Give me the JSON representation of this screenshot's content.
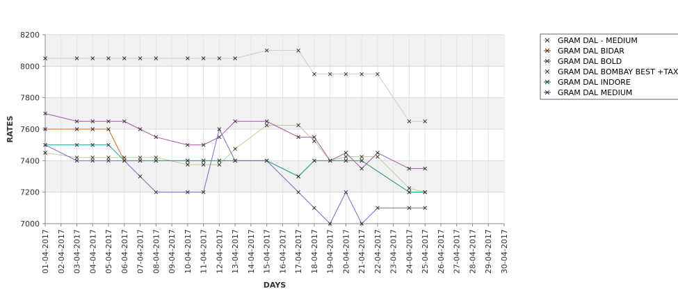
{
  "chart_data": {
    "type": "line",
    "xlabel": "DAYS",
    "ylabel": "RATES",
    "ylim": [
      7000,
      8200
    ],
    "yticks": [
      7000,
      7200,
      7400,
      7600,
      7800,
      8000,
      8200
    ],
    "grid": true,
    "legend_position": "right",
    "categories": [
      "01-04-2017",
      "02-04-2017",
      "03-04-2017",
      "04-04-2017",
      "05-04-2017",
      "06-04-2017",
      "07-04-2017",
      "08-04-2017",
      "09-04-2017",
      "10-04-2017",
      "11-04-2017",
      "12-04-2017",
      "13-04-2017",
      "14-04-2017",
      "15-04-2017",
      "16-04-2017",
      "17-04-2017",
      "18-04-2017",
      "19-04-2017",
      "20-04-2017",
      "21-04-2017",
      "22-04-2017",
      "23-04-2017",
      "24-04-2017",
      "25-04-2017",
      "26-04-2017",
      "27-04-2017",
      "28-04-2017",
      "29-04-2017",
      "30-04-2017"
    ],
    "series": [
      {
        "name": "GRAM DAL - MEDIUM",
        "color": "#c8c89a",
        "values": [
          7450,
          null,
          7420,
          7420,
          7420,
          7420,
          7420,
          7420,
          null,
          7375,
          7375,
          7375,
          7475,
          null,
          7625,
          null,
          7625,
          7525,
          7400,
          7425,
          7425,
          7425,
          null,
          7225,
          7200,
          null,
          null,
          null,
          null,
          null
        ]
      },
      {
        "name": "GRAM DAL BIDAR",
        "color": "#d2691e",
        "values": [
          7600,
          null,
          7600,
          7600,
          7600,
          7400,
          7400,
          7400,
          null,
          7400,
          7400,
          7400,
          7400,
          null,
          7400,
          null,
          7300,
          7400,
          7400,
          7400,
          7400,
          null,
          null,
          7200,
          7200,
          null,
          null,
          null,
          null,
          null
        ]
      },
      {
        "name": "GRAM DAL BOLD",
        "color": "#aa55aa",
        "values": [
          7700,
          null,
          7650,
          7650,
          7650,
          7650,
          7600,
          7550,
          null,
          7500,
          7500,
          7550,
          7650,
          null,
          7650,
          null,
          7550,
          7550,
          7400,
          7450,
          7350,
          7450,
          null,
          7350,
          7350,
          null,
          null,
          null,
          null,
          null
        ]
      },
      {
        "name": "GRAM DAL BOMBAY BEST +TAX",
        "color": "#cccccc",
        "values": [
          8050,
          null,
          8050,
          8050,
          8050,
          8050,
          8050,
          8050,
          null,
          8050,
          8050,
          8050,
          8050,
          null,
          8100,
          null,
          8100,
          7950,
          7950,
          7950,
          7950,
          7950,
          null,
          7650,
          7650,
          null,
          null,
          null,
          null,
          null
        ]
      },
      {
        "name": "GRAM DAL INDORE",
        "color": "#1aa59a",
        "values": [
          7500,
          null,
          7500,
          7500,
          7500,
          7400,
          7400,
          7400,
          null,
          7400,
          7400,
          7400,
          7400,
          null,
          7400,
          null,
          7300,
          7400,
          7400,
          7400,
          7400,
          null,
          null,
          7200,
          7200,
          null,
          null,
          null,
          null,
          null
        ]
      },
      {
        "name": "GRAM DAL MEDIUM",
        "color": "#7b68c8",
        "values": [
          7500,
          null,
          7400,
          7400,
          7400,
          7400,
          7300,
          7200,
          null,
          7200,
          7200,
          7600,
          7400,
          null,
          7400,
          null,
          7200,
          7100,
          7000,
          7200,
          7000,
          7100,
          null,
          7100,
          7100,
          null,
          null,
          null,
          null,
          null
        ]
      }
    ]
  }
}
